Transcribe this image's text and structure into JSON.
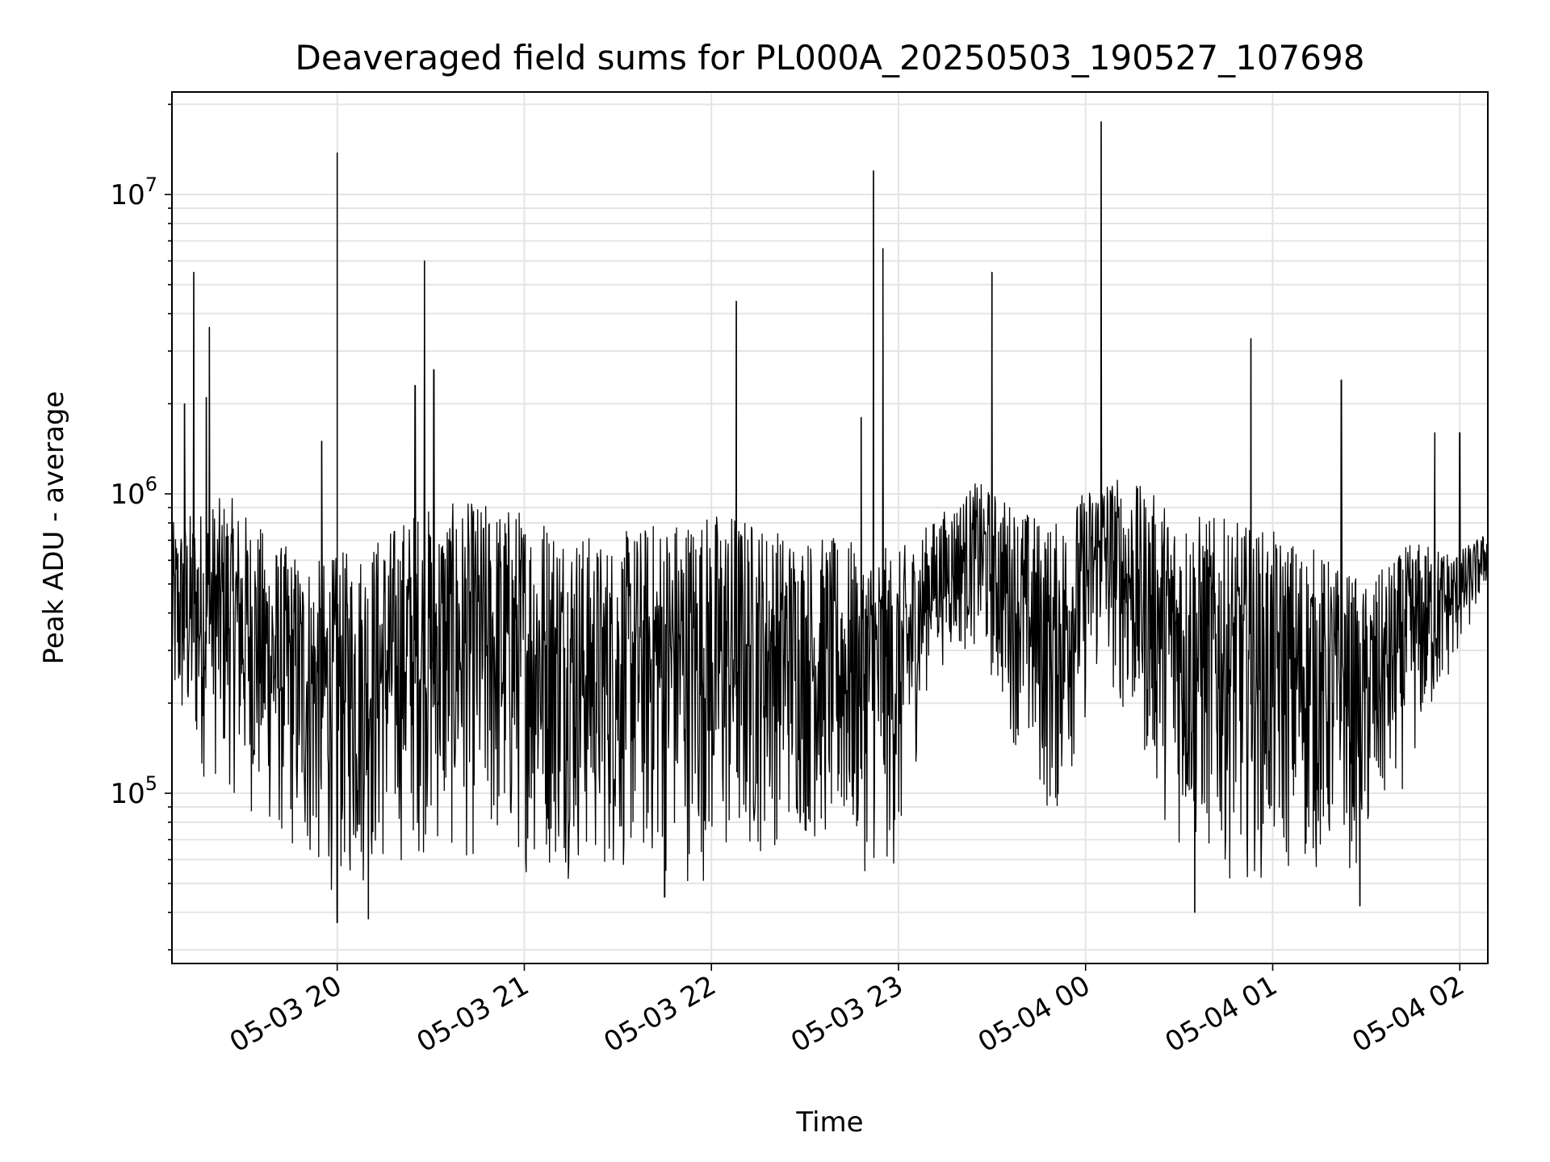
{
  "chart_data": {
    "type": "line",
    "title": "Deaveraged field sums for PL000A_20250503_190527_107698",
    "xlabel": "Time",
    "ylabel": "Peak ADU - average",
    "yscale": "log",
    "ylim": [
      27000,
      22000000
    ],
    "xlim": [
      "2025-05-03 19:07",
      "2025-05-04 02:09"
    ],
    "grid": true,
    "line_color": "#000000",
    "x_ticks": [
      {
        "t": "2025-05-03 20:00",
        "label": "05-03 20"
      },
      {
        "t": "2025-05-03 21:00",
        "label": "05-03 21"
      },
      {
        "t": "2025-05-03 22:00",
        "label": "05-03 22"
      },
      {
        "t": "2025-05-03 23:00",
        "label": "05-03 23"
      },
      {
        "t": "2025-05-04 00:00",
        "label": "05-04 00"
      },
      {
        "t": "2025-05-04 01:00",
        "label": "05-04 01"
      },
      {
        "t": "2025-05-04 02:00",
        "label": "05-04 02"
      }
    ],
    "y_ticks": [
      {
        "value": 100000,
        "base": "10",
        "exp": "5"
      },
      {
        "value": 1000000,
        "base": "10",
        "exp": "6"
      },
      {
        "value": 10000000,
        "base": "10",
        "exp": "7"
      }
    ],
    "series": [
      {
        "envelope": [
          {
            "t": "2025-05-03 19:07",
            "low": 150000,
            "high": 800000
          },
          {
            "t": "2025-05-03 19:15",
            "low": 110000,
            "high": 900000
          },
          {
            "t": "2025-05-03 19:25",
            "low": 100000,
            "high": 1000000
          },
          {
            "t": "2025-05-03 19:40",
            "low": 65000,
            "high": 700000
          },
          {
            "t": "2025-05-03 19:55",
            "low": 45000,
            "high": 600000
          },
          {
            "t": "2025-05-03 20:10",
            "low": 45000,
            "high": 700000
          },
          {
            "t": "2025-05-03 20:25",
            "low": 60000,
            "high": 900000
          },
          {
            "t": "2025-05-03 20:45",
            "low": 55000,
            "high": 950000
          },
          {
            "t": "2025-05-03 21:05",
            "low": 52000,
            "high": 900000
          },
          {
            "t": "2025-05-03 21:25",
            "low": 50000,
            "high": 700000
          },
          {
            "t": "2025-05-03 21:45",
            "low": 50000,
            "high": 850000
          },
          {
            "t": "2025-05-03 22:05",
            "low": 48000,
            "high": 900000
          },
          {
            "t": "2025-05-03 22:25",
            "low": 70000,
            "high": 750000
          },
          {
            "t": "2025-05-03 22:45",
            "low": 55000,
            "high": 700000
          },
          {
            "t": "2025-05-03 23:00",
            "low": 50000,
            "high": 650000
          },
          {
            "t": "2025-05-03 23:10",
            "low": 250000,
            "high": 800000
          },
          {
            "t": "2025-05-03 23:25",
            "low": 300000,
            "high": 1100000
          },
          {
            "t": "2025-05-03 23:40",
            "low": 120000,
            "high": 900000
          },
          {
            "t": "2025-05-03 23:50",
            "low": 70000,
            "high": 800000
          },
          {
            "t": "2025-05-04 00:05",
            "low": 250000,
            "high": 1200000
          },
          {
            "t": "2025-05-04 00:15",
            "low": 150000,
            "high": 1100000
          },
          {
            "t": "2025-05-04 00:30",
            "low": 60000,
            "high": 900000
          },
          {
            "t": "2025-05-04 00:50",
            "low": 50000,
            "high": 800000
          },
          {
            "t": "2025-05-04 01:10",
            "low": 50000,
            "high": 700000
          },
          {
            "t": "2025-05-04 01:30",
            "low": 55000,
            "high": 500000
          },
          {
            "t": "2025-05-04 01:45",
            "low": 120000,
            "high": 700000
          },
          {
            "t": "2025-05-04 02:00",
            "low": 280000,
            "high": 650000
          },
          {
            "t": "2025-05-04 02:09",
            "low": 500000,
            "high": 750000
          }
        ],
        "spikes": [
          {
            "t": "2025-05-03 19:14",
            "value": 5500000
          },
          {
            "t": "2025-05-03 19:19",
            "value": 3600000
          },
          {
            "t": "2025-05-03 19:18",
            "value": 2100000
          },
          {
            "t": "2025-05-03 19:11",
            "value": 2000000
          },
          {
            "t": "2025-05-03 19:55",
            "value": 1500000
          },
          {
            "t": "2025-05-03 20:00",
            "value": 13800000
          },
          {
            "t": "2025-05-03 20:00",
            "value": 37000
          },
          {
            "t": "2025-05-03 20:10",
            "value": 38000
          },
          {
            "t": "2025-05-03 20:25",
            "value": 2300000
          },
          {
            "t": "2025-05-03 20:28",
            "value": 6000000
          },
          {
            "t": "2025-05-03 20:31",
            "value": 2600000
          },
          {
            "t": "2025-05-03 21:45",
            "value": 45000
          },
          {
            "t": "2025-05-03 22:08",
            "value": 4400000
          },
          {
            "t": "2025-05-03 22:48",
            "value": 1800000
          },
          {
            "t": "2025-05-03 22:52",
            "value": 12000000
          },
          {
            "t": "2025-05-03 22:55",
            "value": 6600000
          },
          {
            "t": "2025-05-03 23:30",
            "value": 5500000
          },
          {
            "t": "2025-05-04 00:05",
            "value": 17500000
          },
          {
            "t": "2025-05-04 00:35",
            "value": 40000
          },
          {
            "t": "2025-05-04 00:53",
            "value": 3300000
          },
          {
            "t": "2025-05-04 01:22",
            "value": 2400000
          },
          {
            "t": "2025-05-04 01:28",
            "value": 42000
          },
          {
            "t": "2025-05-04 01:52",
            "value": 1600000
          },
          {
            "t": "2025-05-04 02:00",
            "value": 1600000
          }
        ]
      }
    ]
  }
}
